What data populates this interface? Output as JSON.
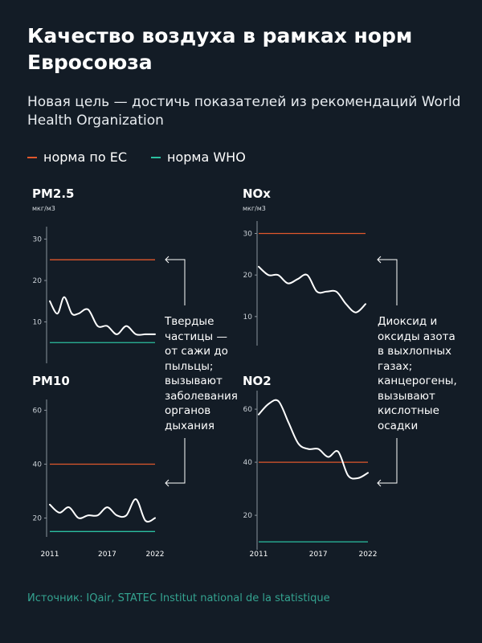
{
  "title": "Качество воздуха в рамках норм Евросоюза",
  "subtitle": "Новая цель — достичь  показателей из рекомендаций World Health Organization",
  "legend": [
    {
      "label": "норма по ЕС",
      "color": "#e0572c"
    },
    {
      "label": "норма WHO",
      "color": "#2bbfa0"
    }
  ],
  "notes": {
    "particles": "Твердые частицы — от сажи до пыльцы; вызывают заболевания органов дыхания",
    "nitrogen": "Диоксид и оксиды азота в выхлопных газах; канцерогены, вызывают кислотные осадки"
  },
  "source": "Источник: IQair, STATEC Institut national de la statistique",
  "colors": {
    "eu": "#e0572c",
    "who": "#2bbfa0",
    "line": "#ffffff",
    "axis": "#8a939c"
  },
  "chart_data": [
    {
      "id": "pm25",
      "type": "line",
      "title": "PM2.5",
      "unit": "мкг/м3",
      "ylim": [
        0,
        33
      ],
      "yticks": [
        10,
        20,
        30
      ],
      "xlim": [
        2011,
        2022
      ],
      "xticks": [],
      "eu_norm": 25,
      "who_norm": 5,
      "x": [
        2011,
        2011.8,
        2012.5,
        2013.3,
        2014,
        2015,
        2016,
        2017,
        2018,
        2019,
        2020,
        2021,
        2022
      ],
      "y": [
        15,
        12,
        16,
        12,
        12,
        13,
        9,
        9,
        7,
        9,
        7,
        7,
        7
      ]
    },
    {
      "id": "nox",
      "type": "line",
      "title": "NOx",
      "unit": "мкг/м3",
      "ylim": [
        3,
        33
      ],
      "yticks": [
        10,
        20,
        30
      ],
      "xlim": [
        2011,
        2022
      ],
      "xticks": [],
      "eu_norm": 30,
      "who_norm": null,
      "x": [
        2011,
        2012,
        2013,
        2014,
        2015,
        2016,
        2017,
        2018,
        2019,
        2020,
        2021,
        2022
      ],
      "y": [
        22,
        20,
        20,
        18,
        19,
        20,
        16,
        16,
        16,
        13,
        11,
        13
      ]
    },
    {
      "id": "pm10",
      "type": "line",
      "title": "PM10",
      "unit": "",
      "ylim": [
        13,
        64
      ],
      "yticks": [
        20,
        40,
        60
      ],
      "xlim": [
        2011,
        2022
      ],
      "xticks": [
        2011,
        2017,
        2022
      ],
      "eu_norm": 40,
      "who_norm": 15,
      "x": [
        2011,
        2012,
        2013,
        2014,
        2015,
        2016,
        2017,
        2018,
        2019,
        2020,
        2021,
        2022
      ],
      "y": [
        25,
        22,
        24,
        20,
        21,
        21,
        24,
        21,
        21,
        27,
        19,
        20
      ]
    },
    {
      "id": "no2",
      "type": "line",
      "title": "NO2",
      "unit": "",
      "ylim": [
        7,
        67
      ],
      "yticks": [
        20,
        40,
        60
      ],
      "xlim": [
        2011,
        2022
      ],
      "xticks": [
        2011,
        2017,
        2022
      ],
      "eu_norm": 40,
      "who_norm": 10,
      "x": [
        2011,
        2012,
        2013,
        2014,
        2015,
        2016,
        2017,
        2018,
        2019,
        2020,
        2021,
        2022
      ],
      "y": [
        58,
        62,
        63,
        55,
        47,
        45,
        45,
        42,
        44,
        35,
        34,
        36
      ]
    }
  ]
}
